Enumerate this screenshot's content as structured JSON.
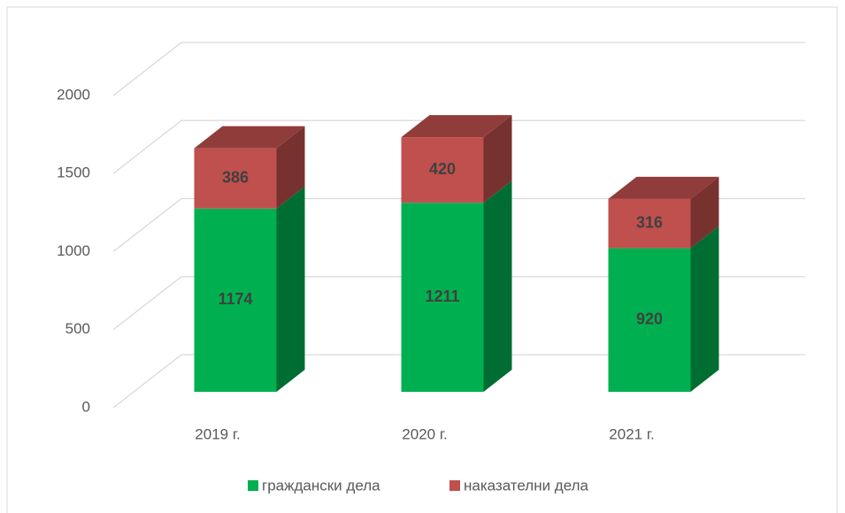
{
  "chart_data": {
    "type": "bar3d_stacked",
    "categories": [
      "2019 г.",
      "2020 г.",
      "2021 г."
    ],
    "series": [
      {
        "name": "граждански дела",
        "color": "#00b050",
        "values": [
          1174,
          1211,
          920
        ]
      },
      {
        "name": "наказателни дела",
        "color": "#c0504d",
        "values": [
          386,
          420,
          316
        ]
      }
    ],
    "ylim": [
      0,
      2000
    ],
    "yticks": [
      0,
      500,
      1000,
      1500,
      2000
    ],
    "grid": true,
    "legend": "bottom"
  }
}
